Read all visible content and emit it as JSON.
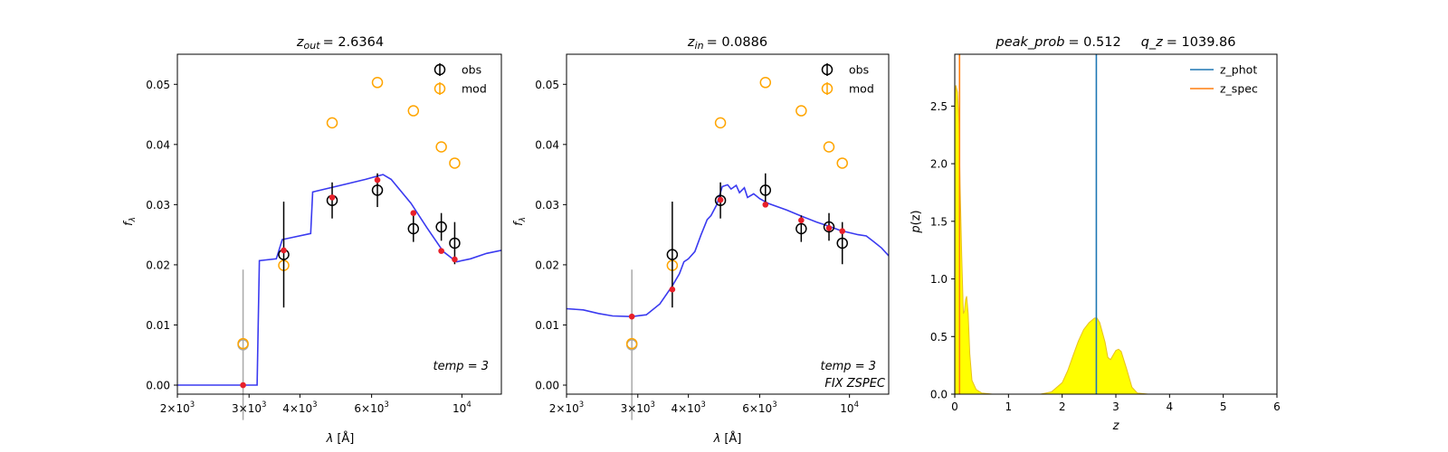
{
  "chart_data": [
    {
      "type": "scatter",
      "title_var": "z",
      "title_sub": "out",
      "title_val": "= 2.6364",
      "xlabel_sym": "λ",
      "xlabel_unit": "[Å]",
      "ylabel_sym": "f",
      "ylabel_sub": "λ",
      "xscale": "log",
      "xlim": [
        2000,
        12500
      ],
      "ylim": [
        -0.0015,
        0.055
      ],
      "xticks": [
        {
          "value": 2000,
          "mant": "2×10",
          "exp": "3"
        },
        {
          "value": 3000,
          "mant": "3×10",
          "exp": "3"
        },
        {
          "value": 4000,
          "mant": "4×10",
          "exp": "3"
        },
        {
          "value": 6000,
          "mant": "6×10",
          "exp": "3"
        },
        {
          "value": 10000,
          "mant": "10",
          "exp": "4"
        }
      ],
      "yticks": [
        {
          "value": 0.0,
          "label": "0.00"
        },
        {
          "value": 0.01,
          "label": "0.01"
        },
        {
          "value": 0.02,
          "label": "0.02"
        },
        {
          "value": 0.03,
          "label": "0.03"
        },
        {
          "value": 0.04,
          "label": "0.04"
        },
        {
          "value": 0.05,
          "label": "0.05"
        }
      ],
      "legend": [
        {
          "name": "obs",
          "color": "#000000"
        },
        {
          "name": "mod",
          "color": "#ffa500"
        }
      ],
      "annotations": [
        {
          "text": "temp = 3"
        }
      ],
      "obs": [
        {
          "x": 3650,
          "y": 0.0217,
          "err": 0.0088
        },
        {
          "x": 4800,
          "y": 0.0307,
          "err": 0.003
        },
        {
          "x": 6200,
          "y": 0.0324,
          "err": 0.0028
        },
        {
          "x": 7600,
          "y": 0.026,
          "err": 0.0022
        },
        {
          "x": 8900,
          "y": 0.0263,
          "err": 0.0023
        },
        {
          "x": 9600,
          "y": 0.0236,
          "err": 0.0035
        }
      ],
      "obs_faded": [
        {
          "x": 2900,
          "y": 0.0067,
          "err": 0.0125
        }
      ],
      "mod": [
        {
          "x": 3650,
          "y": 0.0199
        },
        {
          "x": 4800,
          "y": 0.0436
        },
        {
          "x": 6200,
          "y": 0.0503
        },
        {
          "x": 7600,
          "y": 0.0456
        },
        {
          "x": 8900,
          "y": 0.0396
        },
        {
          "x": 9600,
          "y": 0.0369
        },
        {
          "x": 2900,
          "y": 0.0069
        }
      ],
      "model_points": [
        {
          "x": 2900,
          "y": 0.0
        },
        {
          "x": 3650,
          "y": 0.0224
        },
        {
          "x": 4800,
          "y": 0.0312
        },
        {
          "x": 6200,
          "y": 0.0341
        },
        {
          "x": 7600,
          "y": 0.0286
        },
        {
          "x": 8900,
          "y": 0.0223
        },
        {
          "x": 9600,
          "y": 0.0209
        }
      ],
      "template": [
        [
          2000,
          0.0
        ],
        [
          3140,
          0.0
        ],
        [
          3180,
          0.0207
        ],
        [
          3500,
          0.021
        ],
        [
          3620,
          0.0242
        ],
        [
          4250,
          0.0252
        ],
        [
          4300,
          0.0321
        ],
        [
          5800,
          0.0342
        ],
        [
          6400,
          0.035
        ],
        [
          6700,
          0.0342
        ],
        [
          7500,
          0.0302
        ],
        [
          8200,
          0.0262
        ],
        [
          9000,
          0.0222
        ],
        [
          9700,
          0.0205
        ],
        [
          10500,
          0.021
        ],
        [
          11500,
          0.0219
        ],
        [
          12500,
          0.0224
        ]
      ]
    },
    {
      "type": "scatter",
      "title_var": "z",
      "title_sub": "in",
      "title_val": "= 0.0886",
      "xlabel_sym": "λ",
      "xlabel_unit": "[Å]",
      "ylabel_sym": "f",
      "ylabel_sub": "λ",
      "xscale": "log",
      "xlim": [
        2000,
        12500
      ],
      "ylim": [
        -0.0015,
        0.055
      ],
      "xticks": [
        {
          "value": 2000,
          "mant": "2×10",
          "exp": "3"
        },
        {
          "value": 3000,
          "mant": "3×10",
          "exp": "3"
        },
        {
          "value": 4000,
          "mant": "4×10",
          "exp": "3"
        },
        {
          "value": 6000,
          "mant": "6×10",
          "exp": "3"
        },
        {
          "value": 10000,
          "mant": "10",
          "exp": "4"
        }
      ],
      "yticks": [
        {
          "value": 0.0,
          "label": "0.00"
        },
        {
          "value": 0.01,
          "label": "0.01"
        },
        {
          "value": 0.02,
          "label": "0.02"
        },
        {
          "value": 0.03,
          "label": "0.03"
        },
        {
          "value": 0.04,
          "label": "0.04"
        },
        {
          "value": 0.05,
          "label": "0.05"
        }
      ],
      "legend": [
        {
          "name": "obs",
          "color": "#000000"
        },
        {
          "name": "mod",
          "color": "#ffa500"
        }
      ],
      "annotations": [
        {
          "text": "temp = 3"
        },
        {
          "text": "FIX ZSPEC"
        }
      ],
      "obs": [
        {
          "x": 3650,
          "y": 0.0217,
          "err": 0.0088
        },
        {
          "x": 4800,
          "y": 0.0307,
          "err": 0.003
        },
        {
          "x": 6200,
          "y": 0.0324,
          "err": 0.0028
        },
        {
          "x": 7600,
          "y": 0.026,
          "err": 0.0022
        },
        {
          "x": 8900,
          "y": 0.0263,
          "err": 0.0023
        },
        {
          "x": 9600,
          "y": 0.0236,
          "err": 0.0035
        }
      ],
      "obs_faded": [
        {
          "x": 2900,
          "y": 0.0067,
          "err": 0.0125
        }
      ],
      "mod": [
        {
          "x": 3650,
          "y": 0.0199
        },
        {
          "x": 4800,
          "y": 0.0436
        },
        {
          "x": 6200,
          "y": 0.0503
        },
        {
          "x": 7600,
          "y": 0.0456
        },
        {
          "x": 8900,
          "y": 0.0396
        },
        {
          "x": 9600,
          "y": 0.0369
        },
        {
          "x": 2900,
          "y": 0.0069
        }
      ],
      "model_points": [
        {
          "x": 2900,
          "y": 0.0114
        },
        {
          "x": 3650,
          "y": 0.0159
        },
        {
          "x": 4800,
          "y": 0.0308
        },
        {
          "x": 6200,
          "y": 0.03
        },
        {
          "x": 7600,
          "y": 0.0274
        },
        {
          "x": 8900,
          "y": 0.0261
        },
        {
          "x": 9600,
          "y": 0.0256
        }
      ],
      "template": [
        [
          2000,
          0.0127
        ],
        [
          2200,
          0.0125
        ],
        [
          2400,
          0.0119
        ],
        [
          2600,
          0.0115
        ],
        [
          2900,
          0.0114
        ],
        [
          3150,
          0.0117
        ],
        [
          3400,
          0.0135
        ],
        [
          3650,
          0.0165
        ],
        [
          3800,
          0.0185
        ],
        [
          3900,
          0.0205
        ],
        [
          4000,
          0.021
        ],
        [
          4150,
          0.0222
        ],
        [
          4300,
          0.025
        ],
        [
          4450,
          0.0275
        ],
        [
          4550,
          0.0282
        ],
        [
          4700,
          0.03
        ],
        [
          4850,
          0.033
        ],
        [
          5000,
          0.0333
        ],
        [
          5100,
          0.0326
        ],
        [
          5250,
          0.0332
        ],
        [
          5350,
          0.032
        ],
        [
          5500,
          0.0328
        ],
        [
          5600,
          0.0312
        ],
        [
          5800,
          0.0318
        ],
        [
          6000,
          0.031
        ],
        [
          6300,
          0.0302
        ],
        [
          7000,
          0.0291
        ],
        [
          7600,
          0.0281
        ],
        [
          8300,
          0.0271
        ],
        [
          8900,
          0.0264
        ],
        [
          9500,
          0.0257
        ],
        [
          10500,
          0.025
        ],
        [
          11000,
          0.0248
        ],
        [
          11500,
          0.0238
        ],
        [
          12000,
          0.0228
        ],
        [
          12500,
          0.0215
        ]
      ]
    },
    {
      "type": "area",
      "title_a_var": "peak_prob",
      "title_a_val": "= 0.512",
      "title_b_var": "q_z",
      "title_b_val": "= 1039.86",
      "xlabel": "z",
      "ylabel_sym": "p",
      "ylabel_arg": "(z)",
      "xlim": [
        0,
        6
      ],
      "ylim": [
        0,
        2.95
      ],
      "xticks": [
        {
          "value": 0,
          "label": "0"
        },
        {
          "value": 1,
          "label": "1"
        },
        {
          "value": 2,
          "label": "2"
        },
        {
          "value": 3,
          "label": "3"
        },
        {
          "value": 4,
          "label": "4"
        },
        {
          "value": 5,
          "label": "5"
        },
        {
          "value": 6,
          "label": "6"
        }
      ],
      "yticks": [
        {
          "value": 0.0,
          "label": "0.0"
        },
        {
          "value": 0.5,
          "label": "0.5"
        },
        {
          "value": 1.0,
          "label": "1.0"
        },
        {
          "value": 1.5,
          "label": "1.5"
        },
        {
          "value": 2.0,
          "label": "2.0"
        },
        {
          "value": 2.5,
          "label": "2.5"
        }
      ],
      "legend": [
        {
          "name": "z_phot",
          "color": "#1f77b4"
        },
        {
          "name": "z_spec",
          "color": "#ff7f0e"
        }
      ],
      "z_phot": 2.6364,
      "z_spec": 0.0886,
      "fill_color": "#ffff00",
      "line_color": "#e8c020",
      "pz": [
        [
          0,
          2.5
        ],
        [
          0.02,
          2.68
        ],
        [
          0.05,
          2.62
        ],
        [
          0.08,
          2.35
        ],
        [
          0.1,
          1.8
        ],
        [
          0.13,
          1.2
        ],
        [
          0.16,
          0.7
        ],
        [
          0.18,
          0.72
        ],
        [
          0.2,
          0.82
        ],
        [
          0.22,
          0.85
        ],
        [
          0.25,
          0.7
        ],
        [
          0.28,
          0.35
        ],
        [
          0.32,
          0.12
        ],
        [
          0.4,
          0.04
        ],
        [
          0.5,
          0.01
        ],
        [
          0.7,
          0.0
        ],
        [
          1.6,
          0.0
        ],
        [
          1.8,
          0.02
        ],
        [
          2.0,
          0.1
        ],
        [
          2.1,
          0.2
        ],
        [
          2.2,
          0.33
        ],
        [
          2.3,
          0.46
        ],
        [
          2.4,
          0.56
        ],
        [
          2.5,
          0.62
        ],
        [
          2.6,
          0.66
        ],
        [
          2.65,
          0.66
        ],
        [
          2.7,
          0.62
        ],
        [
          2.8,
          0.45
        ],
        [
          2.85,
          0.32
        ],
        [
          2.9,
          0.3
        ],
        [
          2.95,
          0.34
        ],
        [
          3.0,
          0.38
        ],
        [
          3.05,
          0.39
        ],
        [
          3.1,
          0.37
        ],
        [
          3.2,
          0.22
        ],
        [
          3.3,
          0.06
        ],
        [
          3.4,
          0.01
        ],
        [
          3.6,
          0.0
        ],
        [
          5.0,
          0.0
        ]
      ]
    }
  ]
}
